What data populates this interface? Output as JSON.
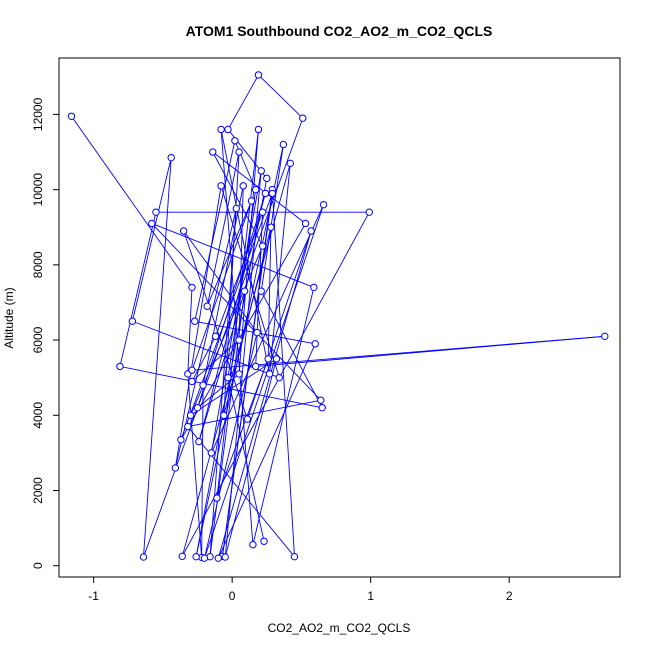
{
  "chart_data": {
    "type": "scatter",
    "title": "ATOM1 Southbound CO2_AO2_m_CO2_QCLS",
    "xlabel": "CO2_AO2_m_CO2_QCLS",
    "ylabel": "Altitude (m)",
    "xlim": [
      -1.25,
      2.8
    ],
    "ylim": [
      -300,
      13500
    ],
    "x_ticks": [
      -1,
      0,
      1,
      2
    ],
    "y_ticks": [
      0,
      2000,
      4000,
      6000,
      8000,
      10000,
      12000
    ],
    "grid": false,
    "series": [
      {
        "color": "#0000ff",
        "marker": "open-circle",
        "line": true,
        "points": [
          {
            "x": -1.16,
            "y": 11950
          },
          {
            "x": -0.29,
            "y": 7400
          },
          {
            "x": -0.32,
            "y": 5100
          },
          {
            "x": -0.22,
            "y": 220
          },
          {
            "x": -0.21,
            "y": 4800
          },
          {
            "x": 0.08,
            "y": 10100
          },
          {
            "x": 0.05,
            "y": 6000
          },
          {
            "x": -0.29,
            "y": 4900
          },
          {
            "x": -0.12,
            "y": 6100
          },
          {
            "x": 0.22,
            "y": 9400
          },
          {
            "x": 0.17,
            "y": 5300
          },
          {
            "x": 2.69,
            "y": 6100
          },
          {
            "x": -0.29,
            "y": 5200
          },
          {
            "x": 0.14,
            "y": 9700
          },
          {
            "x": -0.18,
            "y": 6900
          },
          {
            "x": 0.05,
            "y": 11000
          },
          {
            "x": -0.06,
            "y": 4000
          },
          {
            "x": 0.28,
            "y": 9000
          },
          {
            "x": 0.26,
            "y": 5500
          },
          {
            "x": -0.11,
            "y": 1800
          },
          {
            "x": 0.19,
            "y": 11600
          },
          {
            "x": 0.05,
            "y": 5100
          },
          {
            "x": -0.25,
            "y": 4200
          },
          {
            "x": 0.24,
            "y": 9900
          },
          {
            "x": -0.24,
            "y": 3300
          },
          {
            "x": 0.09,
            "y": 7300
          },
          {
            "x": -0.16,
            "y": 240
          },
          {
            "x": 0.03,
            "y": 9500
          },
          {
            "x": -0.41,
            "y": 2600
          },
          {
            "x": -0.08,
            "y": 10100
          },
          {
            "x": 0.34,
            "y": 5000
          },
          {
            "x": -0.72,
            "y": 6500
          },
          {
            "x": -0.44,
            "y": 10850
          },
          {
            "x": -0.64,
            "y": 230
          },
          {
            "x": 0.51,
            "y": 11900
          },
          {
            "x": 0.19,
            "y": 13050
          },
          {
            "x": -0.03,
            "y": 11600
          },
          {
            "x": 0.25,
            "y": 10300
          },
          {
            "x": -0.26,
            "y": 240
          },
          {
            "x": 0.37,
            "y": 11200
          },
          {
            "x": 0.21,
            "y": 7300
          },
          {
            "x": 0.65,
            "y": 4200
          },
          {
            "x": -0.81,
            "y": 5300
          },
          {
            "x": -0.55,
            "y": 9400
          },
          {
            "x": 0.99,
            "y": 9400
          },
          {
            "x": -0.36,
            "y": 250
          },
          {
            "x": 0.42,
            "y": 10700
          },
          {
            "x": 0.27,
            "y": 5100
          },
          {
            "x": -0.08,
            "y": 11600
          },
          {
            "x": 0.15,
            "y": 560
          },
          {
            "x": 0.59,
            "y": 7400
          },
          {
            "x": -0.58,
            "y": 9100
          },
          {
            "x": 0.64,
            "y": 4400
          },
          {
            "x": -0.32,
            "y": 3700
          },
          {
            "x": 0.45,
            "y": 240
          },
          {
            "x": 0.29,
            "y": 10000
          },
          {
            "x": -0.07,
            "y": 250
          },
          {
            "x": 0.29,
            "y": 9900
          },
          {
            "x": -0.37,
            "y": 3350
          },
          {
            "x": 0.53,
            "y": 9100
          },
          {
            "x": -0.14,
            "y": 11000
          },
          {
            "x": 0.22,
            "y": 8500
          },
          {
            "x": -0.3,
            "y": 4000
          },
          {
            "x": 0.32,
            "y": 5500
          },
          {
            "x": -0.05,
            "y": 230
          },
          {
            "x": 0.21,
            "y": 10500
          },
          {
            "x": -0.15,
            "y": 3000
          },
          {
            "x": 0.66,
            "y": 9600
          },
          {
            "x": -0.2,
            "y": 200
          },
          {
            "x": 0.18,
            "y": 6200
          },
          {
            "x": -0.35,
            "y": 8900
          },
          {
            "x": 0.11,
            "y": 3900
          },
          {
            "x": 0.57,
            "y": 8900
          },
          {
            "x": -0.1,
            "y": 200
          },
          {
            "x": 0.6,
            "y": 5900
          },
          {
            "x": -0.27,
            "y": 6500
          },
          {
            "x": 0.02,
            "y": 11300
          },
          {
            "x": 0.17,
            "y": 10000
          },
          {
            "x": -0.03,
            "y": 5000
          },
          {
            "x": 0.23,
            "y": 650
          }
        ]
      }
    ]
  }
}
